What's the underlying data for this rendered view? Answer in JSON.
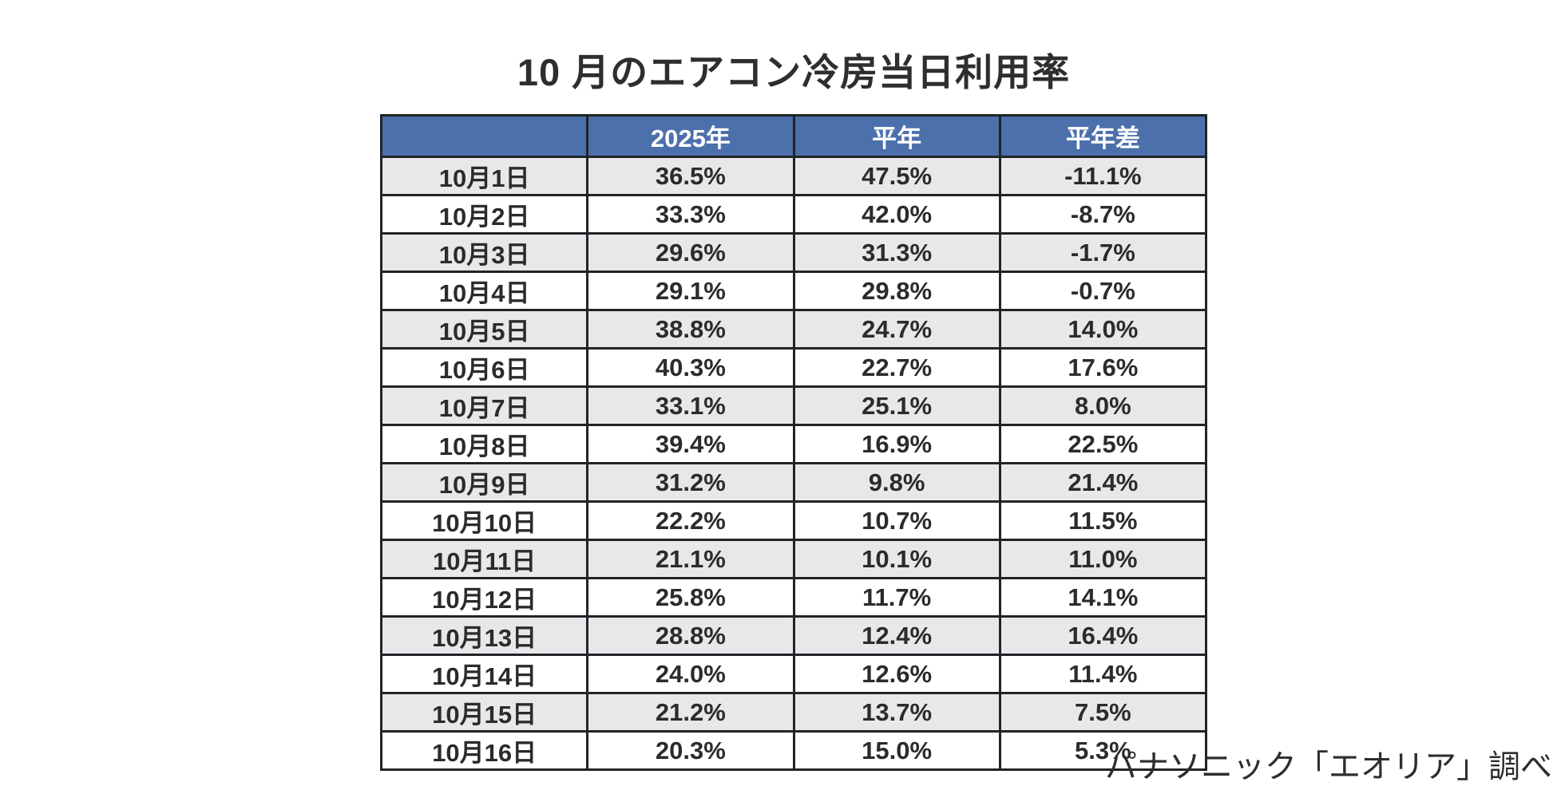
{
  "title": "10 月のエアコン冷房当日利用率",
  "footer": "パナソニック「エオリア」調べ",
  "colors": {
    "header_bg": "#4c70ac",
    "header_text": "#ffffff",
    "row_stripe": "#e8e8ea",
    "row_plain": "#ffffff",
    "border": "#212426",
    "text": "#2b2b2b",
    "page_bg": "#ffffff"
  },
  "chart_data": {
    "type": "table",
    "title": "10 月のエアコン冷房当日利用率",
    "columns": [
      "",
      "2025年",
      "平年",
      "平年差"
    ],
    "rows": [
      {
        "date": "10月1日",
        "y2025": "36.5%",
        "normal": "47.5%",
        "diff": "-11.1%"
      },
      {
        "date": "10月2日",
        "y2025": "33.3%",
        "normal": "42.0%",
        "diff": "-8.7%"
      },
      {
        "date": "10月3日",
        "y2025": "29.6%",
        "normal": "31.3%",
        "diff": "-1.7%"
      },
      {
        "date": "10月4日",
        "y2025": "29.1%",
        "normal": "29.8%",
        "diff": "-0.7%"
      },
      {
        "date": "10月5日",
        "y2025": "38.8%",
        "normal": "24.7%",
        "diff": "14.0%"
      },
      {
        "date": "10月6日",
        "y2025": "40.3%",
        "normal": "22.7%",
        "diff": "17.6%"
      },
      {
        "date": "10月7日",
        "y2025": "33.1%",
        "normal": "25.1%",
        "diff": "8.0%"
      },
      {
        "date": "10月8日",
        "y2025": "39.4%",
        "normal": "16.9%",
        "diff": "22.5%"
      },
      {
        "date": "10月9日",
        "y2025": "31.2%",
        "normal": "9.8%",
        "diff": "21.4%"
      },
      {
        "date": "10月10日",
        "y2025": "22.2%",
        "normal": "10.7%",
        "diff": "11.5%"
      },
      {
        "date": "10月11日",
        "y2025": "21.1%",
        "normal": "10.1%",
        "diff": "11.0%"
      },
      {
        "date": "10月12日",
        "y2025": "25.8%",
        "normal": "11.7%",
        "diff": "14.1%"
      },
      {
        "date": "10月13日",
        "y2025": "28.8%",
        "normal": "12.4%",
        "diff": "16.4%"
      },
      {
        "date": "10月14日",
        "y2025": "24.0%",
        "normal": "12.6%",
        "diff": "11.4%"
      },
      {
        "date": "10月15日",
        "y2025": "21.2%",
        "normal": "13.7%",
        "diff": "7.5%"
      },
      {
        "date": "10月16日",
        "y2025": "20.3%",
        "normal": "15.0%",
        "diff": "5.3%"
      }
    ],
    "units": "%",
    "notes": "source credit shown bottom-right"
  }
}
